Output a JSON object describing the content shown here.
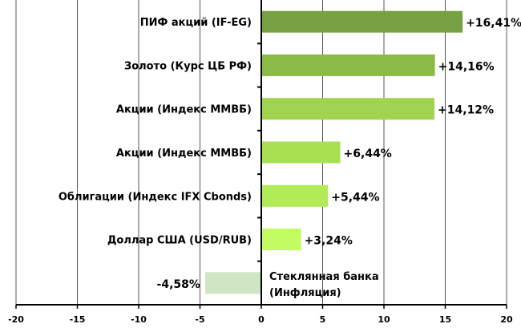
{
  "chart_data": {
    "type": "bar",
    "orientation": "horizontal",
    "title": "",
    "xlabel": "",
    "ylabel": "",
    "xlim": [
      -20,
      20
    ],
    "xticks": [
      -20,
      -15,
      -10,
      -5,
      0,
      5,
      10,
      15,
      20
    ],
    "xtick_labels": [
      "-20",
      "-15",
      "-10",
      "-5",
      "0",
      "5",
      "10",
      "15",
      "20"
    ],
    "grid": "vertical",
    "categories": [
      "ПИФ акций (IF-EG)",
      "Золото (Курс ЦБ РФ)",
      "Акции (Индекс ММВБ)",
      "Акции (Индекс ММВБ)",
      "Облигации (Индекс IFX Cbonds)",
      "Доллар США (USD/RUB)",
      "Стеклянная банка (Инфляция)"
    ],
    "category_lines": [
      [
        "ПИФ акций (IF-EG)"
      ],
      [
        "Золото (Курс ЦБ РФ)"
      ],
      [
        "Акции (Индекс ММВБ)"
      ],
      [
        "Акции (Индекс ММВБ)"
      ],
      [
        "Облигации (Индекс IFX Cbonds)"
      ],
      [
        "Доллар США (USD/RUB)"
      ],
      [
        "Стеклянная банка",
        "(Инфляция)"
      ]
    ],
    "values": [
      16.41,
      14.16,
      14.12,
      6.44,
      5.44,
      3.24,
      -4.58
    ],
    "data_labels": [
      "+16,41%",
      "+14,16%",
      "+14,12%",
      "+6,44%",
      "+5,44%",
      "+3,24%",
      "-4,58%"
    ],
    "colors": [
      "#77a043",
      "#8bbb47",
      "#9fd350",
      "#a8e052",
      "#b2eb58",
      "#c2fb62",
      "#d0e6c2"
    ]
  }
}
